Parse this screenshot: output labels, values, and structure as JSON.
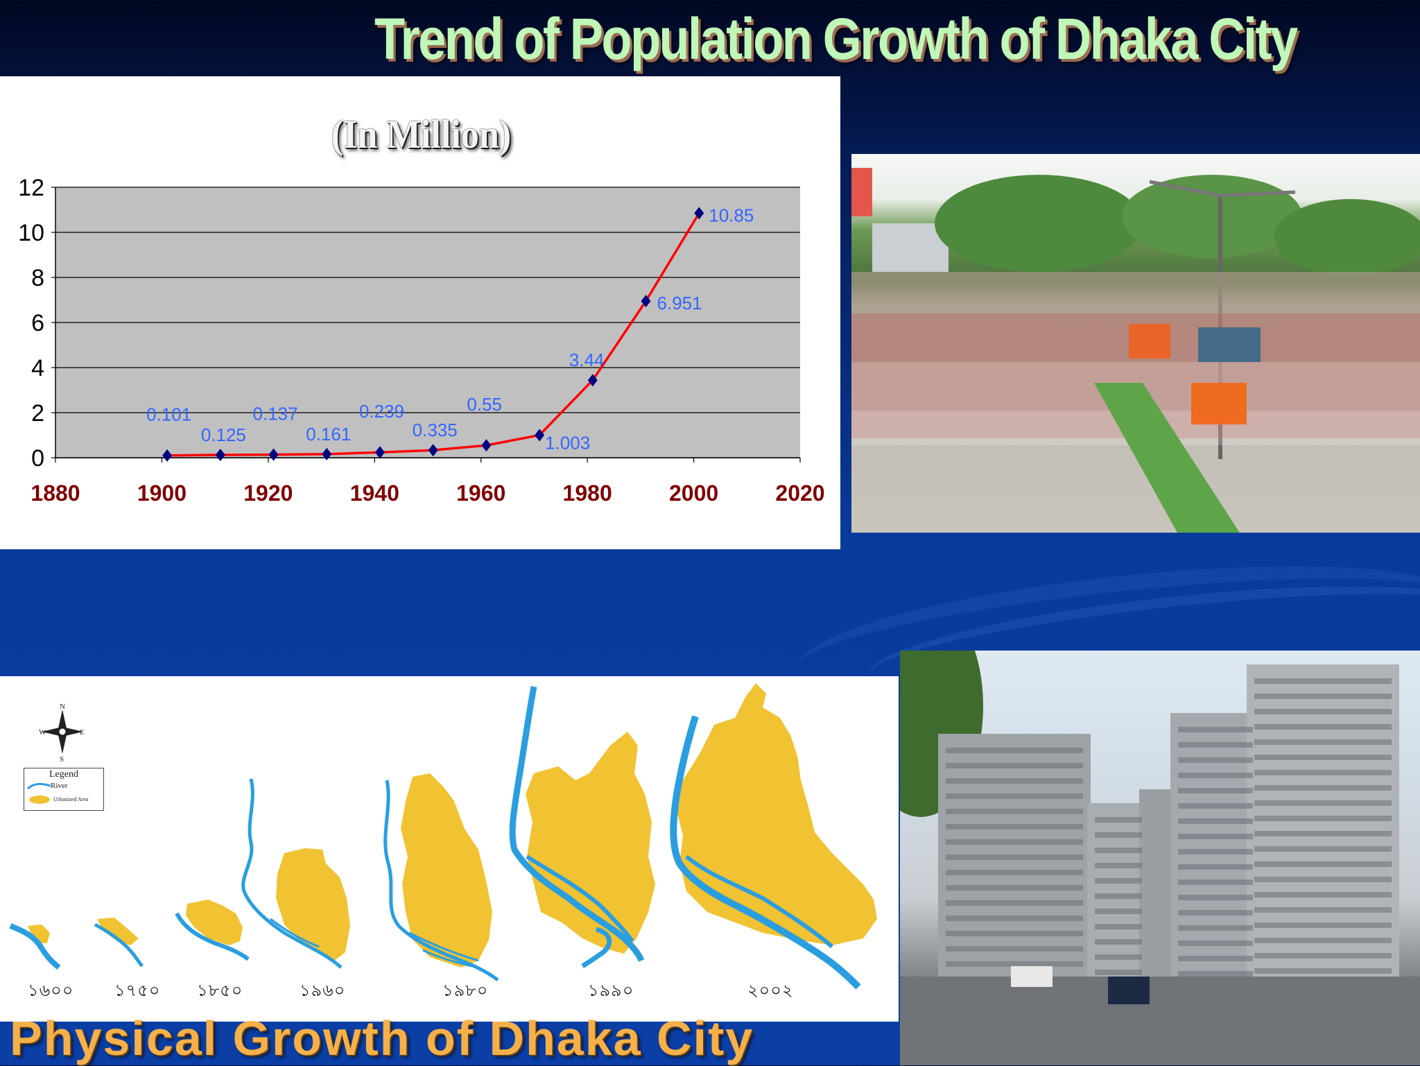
{
  "slide": {
    "title": "Trend of Population Growth of Dhaka City",
    "bottom_title": "Physical Growth of Dhaka City"
  },
  "chart_data": {
    "type": "line",
    "subtitle": "(In Million)",
    "x": [
      1901,
      1911,
      1921,
      1931,
      1941,
      1951,
      1961,
      1971,
      1981,
      1991,
      2001
    ],
    "values": [
      0.101,
      0.125,
      0.137,
      0.161,
      0.239,
      0.335,
      0.55,
      1.003,
      3.44,
      6.951,
      10.85
    ],
    "data_labels": [
      "0.101",
      "0.125",
      "0.137",
      "0.161",
      "0.239",
      "0.335",
      "0.55",
      "1.003",
      "3.44",
      "6.951",
      "10.85"
    ],
    "xlim": [
      1880,
      2020
    ],
    "ylim": [
      0,
      12
    ],
    "x_ticks": [
      "1880",
      "1900",
      "1920",
      "1940",
      "1960",
      "1980",
      "2000",
      "2020"
    ],
    "y_ticks": [
      "0",
      "2",
      "4",
      "6",
      "8",
      "10",
      "12"
    ],
    "grid": true,
    "colors": {
      "line": "#ff0000",
      "marker": "#000080",
      "plot_bg": "#c0c0c0",
      "labels": "#3366ff",
      "x_ticks": "#800000"
    }
  },
  "map": {
    "legend_title": "Legend",
    "legend_river": "River",
    "legend_urban": "Urbanized Area",
    "compass": {
      "n": "N",
      "s": "S",
      "e": "E",
      "w": "W"
    },
    "years": [
      "১৬০০",
      "১৭৫০",
      "১৮৫০",
      "১৯৬০",
      "১৯৮০",
      "১৯৯০",
      "২০০২"
    ],
    "colors": {
      "river": "#2a9ee0",
      "urban": "#f1c232"
    }
  },
  "photos": {
    "crowd": "crowd-street-photo",
    "buildings": "apartment-buildings-photo"
  }
}
